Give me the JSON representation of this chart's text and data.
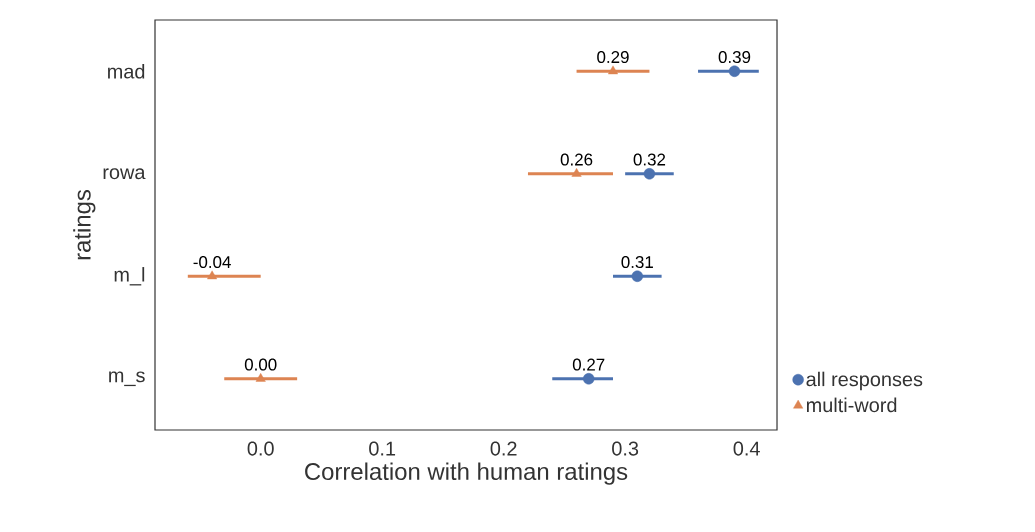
{
  "chart_data": {
    "type": "scatter",
    "orientation": "horizontal",
    "xlabel": "Correlation with human ratings",
    "ylabel": "ratings",
    "categories": [
      "mad",
      "rowa",
      "m_l",
      "m_s"
    ],
    "series": [
      {
        "name": "all responses",
        "color": "#4c72b0",
        "marker": "circle",
        "values": [
          0.39,
          0.32,
          0.31,
          0.27
        ],
        "errors": [
          [
            0.36,
            0.41
          ],
          [
            0.3,
            0.34
          ],
          [
            0.29,
            0.33
          ],
          [
            0.24,
            0.29
          ]
        ],
        "value_labels": [
          "0.39",
          "0.32",
          "0.31",
          "0.27"
        ]
      },
      {
        "name": "multi-word",
        "color": "#dd8452",
        "marker": "triangle",
        "values": [
          0.29,
          0.26,
          -0.04,
          0.0
        ],
        "errors": [
          [
            0.26,
            0.32
          ],
          [
            0.22,
            0.29
          ],
          [
            -0.06,
            0.0
          ],
          [
            -0.03,
            0.03
          ]
        ],
        "value_labels": [
          "0.29",
          "0.26",
          "-0.04",
          "0.00"
        ]
      }
    ],
    "xlim": [
      -0.087,
      0.425
    ],
    "xticks": [
      {
        "value": 0,
        "label": "0.0"
      },
      {
        "value": 0.1,
        "label": "0.1"
      },
      {
        "value": 0.2,
        "label": "0.2"
      },
      {
        "value": 0.3,
        "label": "0.3"
      },
      {
        "value": 0.4,
        "label": "0.4"
      }
    ],
    "grid": false,
    "legend": "bottom right"
  }
}
